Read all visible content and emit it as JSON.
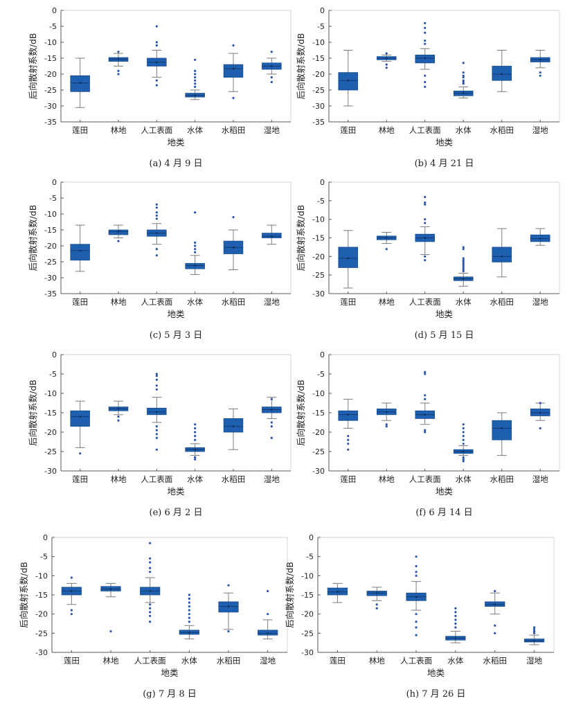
{
  "colors": {
    "box": "#1f5fb0",
    "whisker": "#7a7a7a",
    "outlier": "#2a55a8",
    "axis": "#555555"
  },
  "chart_data": [
    {
      "type": "box",
      "caption": "(a) 4 月 9 日",
      "xlabel": "地类",
      "ylabel": "后向散射系数/dB",
      "ylim": [
        -35,
        0
      ],
      "yticks": [
        0,
        -5,
        -10,
        -15,
        -20,
        -25,
        -30,
        -35
      ],
      "categories": [
        "莲田",
        "林地",
        "人工表面",
        "水体",
        "水稻田",
        "湿地"
      ],
      "boxes": [
        {
          "min": -30.5,
          "q1": -25.5,
          "median": -22.8,
          "q3": -20.5,
          "max": -15.0,
          "outliers": []
        },
        {
          "min": -17.5,
          "q1": -16.0,
          "median": -15.3,
          "q3": -14.8,
          "max": -13.5,
          "outliers": [
            -13.0,
            -19.0,
            -20.0
          ]
        },
        {
          "min": -21.0,
          "q1": -17.5,
          "median": -16.3,
          "q3": -15.0,
          "max": -12.5,
          "outliers": [
            -5.0,
            -10.0,
            -11.0,
            -22.0,
            -23.5
          ]
        },
        {
          "min": -28.0,
          "q1": -27.2,
          "median": -26.7,
          "q3": -26.0,
          "max": -25.0,
          "outliers": [
            -15.5,
            -19.0,
            -20.0,
            -21.0,
            -22.0,
            -23.0,
            -24.0
          ]
        },
        {
          "min": -25.5,
          "q1": -21.0,
          "median": -18.3,
          "q3": -17.0,
          "max": -13.5,
          "outliers": [
            -11.0,
            -27.5
          ]
        },
        {
          "min": -20.0,
          "q1": -18.5,
          "median": -17.5,
          "q3": -16.5,
          "max": -15.0,
          "outliers": [
            -13.0,
            -21.0,
            -22.5
          ]
        }
      ]
    },
    {
      "type": "box",
      "caption": "(b) 4 月 21 日",
      "xlabel": "地类",
      "ylabel": "后向散射系数/dB",
      "ylim": [
        -35,
        0
      ],
      "yticks": [
        0,
        -5,
        -10,
        -15,
        -20,
        -25,
        -30,
        -35
      ],
      "categories": [
        "莲田",
        "林地",
        "人工表面",
        "水体",
        "水稻田",
        "湿地"
      ],
      "boxes": [
        {
          "min": -30.0,
          "q1": -25.0,
          "median": -22.0,
          "q3": -19.5,
          "max": -12.5,
          "outliers": []
        },
        {
          "min": -16.0,
          "q1": -15.5,
          "median": -15.0,
          "q3": -14.5,
          "max": -14.0,
          "outliers": [
            -13.5,
            -17.0,
            -18.0
          ]
        },
        {
          "min": -18.5,
          "q1": -16.5,
          "median": -15.0,
          "q3": -14.0,
          "max": -12.0,
          "outliers": [
            -4.0,
            -5.5,
            -7.0,
            -9.5,
            -10.5,
            -20.5,
            -22.5,
            -24.0
          ]
        },
        {
          "min": -27.5,
          "q1": -26.8,
          "median": -26.0,
          "q3": -25.3,
          "max": -24.0,
          "outliers": [
            -16.5,
            -19.5,
            -20.5,
            -21.0,
            -22.0,
            -22.5,
            -23.0
          ]
        },
        {
          "min": -25.5,
          "q1": -22.0,
          "median": -20.0,
          "q3": -17.5,
          "max": -12.5,
          "outliers": []
        },
        {
          "min": -18.0,
          "q1": -16.2,
          "median": -15.5,
          "q3": -14.8,
          "max": -12.5,
          "outliers": [
            -19.5,
            -20.5
          ]
        }
      ]
    },
    {
      "type": "box",
      "caption": "(c) 5 月 3 日",
      "xlabel": "地类",
      "ylabel": "后向散射系数/dB",
      "ylim": [
        -35,
        0
      ],
      "yticks": [
        0,
        -5,
        -10,
        -15,
        -20,
        -25,
        -30,
        -35
      ],
      "categories": [
        "莲田",
        "林地",
        "人工表面",
        "水体",
        "水稻田",
        "湿地"
      ],
      "boxes": [
        {
          "min": -28.0,
          "q1": -24.5,
          "median": -21.5,
          "q3": -19.5,
          "max": -13.5,
          "outliers": []
        },
        {
          "min": -17.5,
          "q1": -16.5,
          "median": -15.5,
          "q3": -15.0,
          "max": -13.5,
          "outliers": [
            -18.5
          ]
        },
        {
          "min": -19.5,
          "q1": -17.0,
          "median": -16.0,
          "q3": -15.0,
          "max": -13.0,
          "outliers": [
            -7.0,
            -8.0,
            -9.5,
            -10.5,
            -11.5,
            -21.0,
            -23.0
          ]
        },
        {
          "min": -29.0,
          "q1": -27.2,
          "median": -26.2,
          "q3": -25.5,
          "max": -23.0,
          "outliers": [
            -9.5,
            -19.0,
            -20.0,
            -21.0,
            -22.0
          ]
        },
        {
          "min": -27.5,
          "q1": -22.5,
          "median": -20.5,
          "q3": -18.5,
          "max": -15.0,
          "outliers": [
            -11.0
          ]
        },
        {
          "min": -19.5,
          "q1": -17.5,
          "median": -17.0,
          "q3": -16.0,
          "max": -13.5,
          "outliers": []
        }
      ]
    },
    {
      "type": "box",
      "caption": "(d) 5 月 15 日",
      "xlabel": "地类",
      "ylabel": "后向散射系数/dB",
      "ylim": [
        -30,
        0
      ],
      "yticks": [
        0,
        -5,
        -10,
        -15,
        -20,
        -25,
        -30
      ],
      "categories": [
        "莲田",
        "林地",
        "人工表面",
        "水体",
        "水稻田",
        "湿地"
      ],
      "boxes": [
        {
          "min": -28.5,
          "q1": -23.0,
          "median": -20.5,
          "q3": -17.5,
          "max": -13.0,
          "outliers": []
        },
        {
          "min": -16.5,
          "q1": -15.5,
          "median": -15.0,
          "q3": -14.5,
          "max": -13.5,
          "outliers": [
            -18.0
          ]
        },
        {
          "min": -19.5,
          "q1": -16.0,
          "median": -15.0,
          "q3": -14.0,
          "max": -12.0,
          "outliers": [
            -4.0,
            -5.5,
            -6.0,
            -10.0,
            -11.0,
            -20.0,
            -21.0
          ]
        },
        {
          "min": -28.0,
          "q1": -26.5,
          "median": -26.0,
          "q3": -25.5,
          "max": -24.5,
          "outliers": [
            -17.5,
            -18.0,
            -20.5,
            -21.0,
            -21.5,
            -22.0,
            -22.5,
            -23.0,
            -23.5,
            -24.0
          ]
        },
        {
          "min": -25.5,
          "q1": -21.5,
          "median": -20.0,
          "q3": -17.5,
          "max": -12.5,
          "outliers": []
        },
        {
          "min": -17.0,
          "q1": -16.0,
          "median": -15.2,
          "q3": -14.2,
          "max": -12.5,
          "outliers": []
        }
      ]
    },
    {
      "type": "box",
      "caption": "(e) 6 月 2 日",
      "xlabel": "地类",
      "ylabel": "后向散射系数/dB",
      "ylim": [
        -30,
        0
      ],
      "yticks": [
        0,
        -5,
        -10,
        -15,
        -20,
        -25,
        -30
      ],
      "categories": [
        "莲田",
        "林地",
        "人工表面",
        "水体",
        "水稻田",
        "湿地"
      ],
      "boxes": [
        {
          "min": -24.0,
          "q1": -18.5,
          "median": -16.0,
          "q3": -14.5,
          "max": -12.0,
          "outliers": [
            -25.5
          ]
        },
        {
          "min": -15.5,
          "q1": -14.5,
          "median": -14.0,
          "q3": -13.5,
          "max": -12.0,
          "outliers": [
            -16.0,
            -17.0
          ]
        },
        {
          "min": -17.5,
          "q1": -15.5,
          "median": -14.8,
          "q3": -13.8,
          "max": -11.0,
          "outliers": [
            -5.0,
            -5.5,
            -6.5,
            -8.0,
            -9.0,
            -18.5,
            -19.5,
            -20.5,
            -21.5,
            -24.5
          ]
        },
        {
          "min": -26.0,
          "q1": -25.0,
          "median": -24.5,
          "q3": -24.0,
          "max": -23.0,
          "outliers": [
            -18.0,
            -19.0,
            -20.0,
            -21.0,
            -22.0,
            -26.5,
            -27.0
          ]
        },
        {
          "min": -24.5,
          "q1": -20.0,
          "median": -18.5,
          "q3": -16.5,
          "max": -14.0,
          "outliers": []
        },
        {
          "min": -16.5,
          "q1": -15.0,
          "median": -14.2,
          "q3": -13.5,
          "max": -11.0,
          "outliers": [
            -11.5,
            -17.5,
            -18.5,
            -21.5
          ]
        }
      ]
    },
    {
      "type": "box",
      "caption": "(f) 6 月 14 日",
      "xlabel": "地类",
      "ylabel": "后向散射系数/dB",
      "ylim": [
        -30,
        0
      ],
      "yticks": [
        0,
        -5,
        -10,
        -15,
        -20,
        -25,
        -30
      ],
      "categories": [
        "莲田",
        "林地",
        "人工表面",
        "水体",
        "水稻田",
        "湿地"
      ],
      "boxes": [
        {
          "min": -19.0,
          "q1": -17.0,
          "median": -15.5,
          "q3": -14.5,
          "max": -11.5,
          "outliers": [
            -21.0,
            -22.0,
            -23.0,
            -24.5
          ]
        },
        {
          "min": -17.0,
          "q1": -15.5,
          "median": -14.8,
          "q3": -14.0,
          "max": -12.5,
          "outliers": [
            -18.0,
            -18.5
          ]
        },
        {
          "min": -18.0,
          "q1": -16.5,
          "median": -15.5,
          "q3": -14.5,
          "max": -12.5,
          "outliers": [
            -4.5,
            -5.0,
            -10.5,
            -11.5,
            -19.5,
            -20.0
          ]
        },
        {
          "min": -26.0,
          "q1": -25.5,
          "median": -25.0,
          "q3": -24.5,
          "max": -23.5,
          "outliers": [
            -18.0,
            -19.0,
            -20.0,
            -21.0,
            -22.0,
            -23.0,
            -26.5,
            -27.0,
            -27.5
          ]
        },
        {
          "min": -26.0,
          "q1": -22.0,
          "median": -19.0,
          "q3": -17.0,
          "max": -15.0,
          "outliers": []
        },
        {
          "min": -17.0,
          "q1": -15.8,
          "median": -15.0,
          "q3": -14.0,
          "max": -12.5,
          "outliers": [
            -12.5,
            -19.0
          ]
        }
      ]
    },
    {
      "type": "box",
      "caption": "(g) 7 月 8 日",
      "xlabel": "地类",
      "ylabel": "后向散射系数/dB",
      "ylim": [
        -30,
        0
      ],
      "yticks": [
        0,
        -5,
        -10,
        -15,
        -20,
        -25,
        -30
      ],
      "categories": [
        "莲田",
        "林地",
        "人工表面",
        "水体",
        "水稻田",
        "湿地"
      ],
      "boxes": [
        {
          "min": -17.5,
          "q1": -15.0,
          "median": -14.0,
          "q3": -13.0,
          "max": -12.0,
          "outliers": [
            -10.5,
            -19.0,
            -20.0
          ]
        },
        {
          "min": -15.5,
          "q1": -14.0,
          "median": -13.5,
          "q3": -12.8,
          "max": -12.0,
          "outliers": [
            -24.5
          ]
        },
        {
          "min": -17.0,
          "q1": -15.0,
          "median": -14.0,
          "q3": -13.0,
          "max": -10.5,
          "outliers": [
            -1.5,
            -5.5,
            -6.5,
            -8.0,
            -9.0,
            -17.5,
            -18.5,
            -19.5,
            -20.5,
            -22.0
          ]
        },
        {
          "min": -26.5,
          "q1": -25.3,
          "median": -24.8,
          "q3": -24.2,
          "max": -23.0,
          "outliers": [
            -15.0,
            -16.0,
            -17.0,
            -18.0,
            -19.0,
            -20.0,
            -21.0,
            -22.0
          ]
        },
        {
          "min": -24.0,
          "q1": -19.5,
          "median": -18.0,
          "q3": -16.8,
          "max": -14.5,
          "outliers": [
            -12.5,
            -24.5
          ]
        },
        {
          "min": -26.5,
          "q1": -25.5,
          "median": -25.0,
          "q3": -24.2,
          "max": -21.5,
          "outliers": [
            -14.0,
            -20.0
          ]
        }
      ]
    },
    {
      "type": "box",
      "caption": "(h) 7 月 26 日",
      "xlabel": "地类",
      "ylabel": "后向散射系数/dB",
      "ylim": [
        -30,
        0
      ],
      "yticks": [
        0,
        -5,
        -10,
        -15,
        -20,
        -25,
        -30
      ],
      "categories": [
        "莲田",
        "林地",
        "人工表面",
        "水体",
        "水稻田",
        "湿地"
      ],
      "boxes": [
        {
          "min": -17.0,
          "q1": -15.0,
          "median": -14.2,
          "q3": -13.2,
          "max": -12.0,
          "outliers": []
        },
        {
          "min": -16.5,
          "q1": -15.2,
          "median": -14.5,
          "q3": -14.0,
          "max": -13.0,
          "outliers": [
            -17.5,
            -18.5
          ]
        },
        {
          "min": -19.0,
          "q1": -16.5,
          "median": -15.5,
          "q3": -14.5,
          "max": -11.5,
          "outliers": [
            -5.0,
            -7.5,
            -9.0,
            -10.0,
            -20.0,
            -22.0,
            -23.5,
            -25.5
          ]
        },
        {
          "min": -27.5,
          "q1": -26.8,
          "median": -26.3,
          "q3": -25.8,
          "max": -24.5,
          "outliers": [
            -18.5,
            -19.5,
            -20.5,
            -21.5,
            -22.5,
            -23.5
          ]
        },
        {
          "min": -20.0,
          "q1": -18.0,
          "median": -17.5,
          "q3": -16.8,
          "max": -14.5,
          "outliers": [
            -14.0,
            -23.0,
            -25.0
          ]
        },
        {
          "min": -28.0,
          "q1": -27.3,
          "median": -27.0,
          "q3": -26.5,
          "max": -25.5,
          "outliers": [
            -23.5,
            -24.0,
            -24.5,
            -25.0
          ]
        }
      ]
    }
  ]
}
